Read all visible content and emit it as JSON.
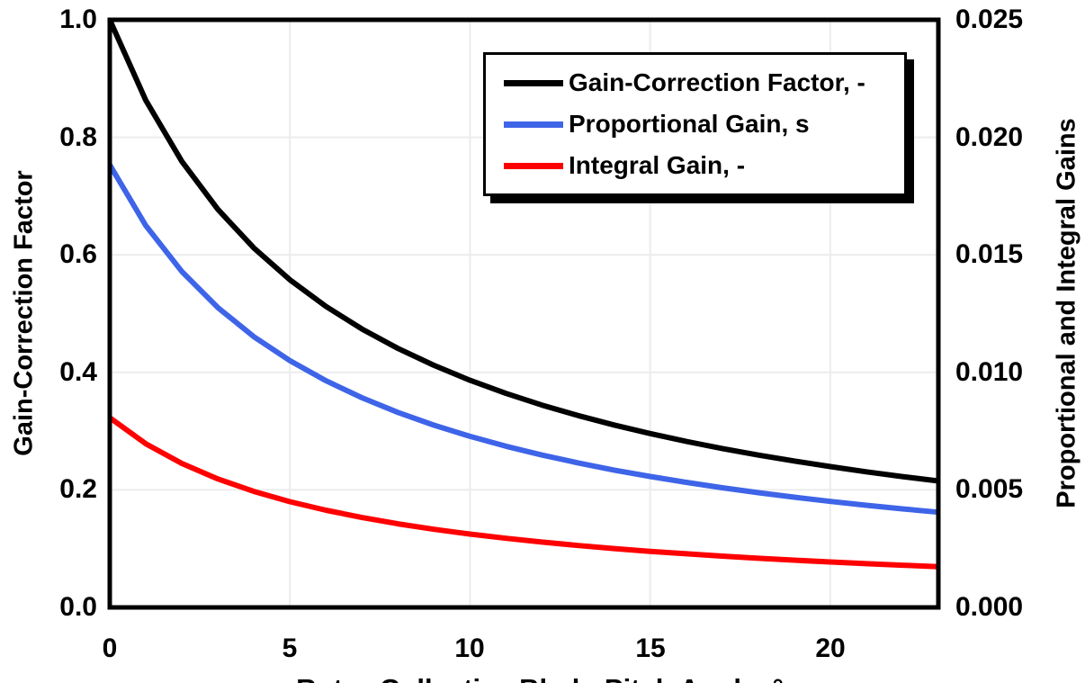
{
  "chart_data": {
    "type": "line",
    "title": "",
    "xlabel": "Rotor-Collective Blade-Pitch Angle, °",
    "ylabel_left": "Gain-Correction Factor",
    "ylabel_right": "Proportional and Integral Gains",
    "xlim": [
      0,
      23
    ],
    "ylim_left": [
      0.0,
      1.0
    ],
    "ylim_right": [
      0.0,
      0.025
    ],
    "grid": true,
    "grid_color": "#ECECEC",
    "frame_color": "#000000",
    "legend_position": "top-center",
    "x_ticks": [
      "0",
      "5",
      "10",
      "15",
      "20"
    ],
    "x_tick_values": [
      0,
      5,
      10,
      15,
      20
    ],
    "left_ticks": [
      "1.0",
      "0.8",
      "0.6",
      "0.4",
      "0.2",
      "0.0"
    ],
    "left_tick_values": [
      1.0,
      0.8,
      0.6,
      0.4,
      0.2,
      0.0
    ],
    "right_ticks": [
      "0.025",
      "0.020",
      "0.015",
      "0.010",
      "0.005",
      "0.000"
    ],
    "right_tick_values": [
      0.025,
      0.02,
      0.015,
      0.01,
      0.005,
      0.0
    ],
    "x": [
      0,
      1,
      2,
      3,
      4,
      5,
      6,
      7,
      8,
      9,
      10,
      11,
      12,
      13,
      14,
      15,
      16,
      17,
      18,
      19,
      20,
      21,
      22,
      23
    ],
    "series": [
      {
        "name": "Gain-Correction Factor, -",
        "axis": "left",
        "color": "#000000",
        "values": [
          1.0,
          0.8631,
          0.7591,
          0.6775,
          0.6117,
          0.5576,
          0.5123,
          0.4738,
          0.4407,
          0.4119,
          0.3866,
          0.3642,
          0.3443,
          0.3265,
          0.3104,
          0.2959,
          0.2826,
          0.2705,
          0.2593,
          0.2491,
          0.2396,
          0.2308,
          0.2227,
          0.2151
        ]
      },
      {
        "name": "Proportional Gain, s",
        "axis": "right",
        "color": "#3E64E8",
        "values": [
          0.018827,
          0.016249,
          0.014292,
          0.012755,
          0.011517,
          0.010498,
          0.009645,
          0.00892,
          0.008296,
          0.007754,
          0.007278,
          0.006858,
          0.006483,
          0.006147,
          0.005844,
          0.00557,
          0.00532,
          0.005092,
          0.004882,
          0.004689,
          0.004511,
          0.004346,
          0.004192,
          0.004049
        ]
      },
      {
        "name": "Integral Gain, -",
        "axis": "right",
        "color": "#FF0000",
        "values": [
          0.008069,
          0.006964,
          0.006125,
          0.005467,
          0.004936,
          0.004499,
          0.004133,
          0.003823,
          0.003556,
          0.003323,
          0.003119,
          0.002939,
          0.002778,
          0.002634,
          0.002505,
          0.002387,
          0.00228,
          0.002182,
          0.002092,
          0.00201,
          0.001933,
          0.001862,
          0.001797,
          0.001735
        ]
      }
    ]
  }
}
